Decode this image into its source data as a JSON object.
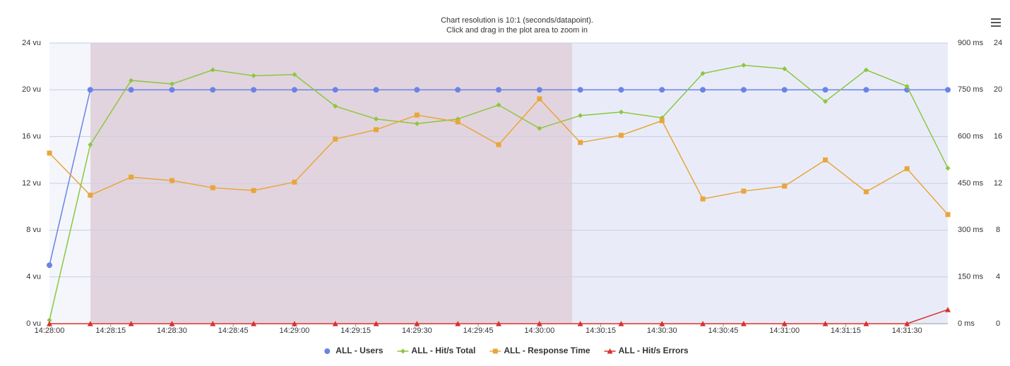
{
  "chart_data": {
    "type": "line",
    "title": "Chart resolution is 10:1 (seconds/datapoint).",
    "subtitle": "Click and drag in the plot area to zoom in",
    "x": [
      "14:28:00",
      "14:28:10",
      "14:28:20",
      "14:28:30",
      "14:28:40",
      "14:28:50",
      "14:29:00",
      "14:29:10",
      "14:29:20",
      "14:29:30",
      "14:29:40",
      "14:29:50",
      "14:30:00",
      "14:30:10",
      "14:30:20",
      "14:30:30",
      "14:30:40",
      "14:30:50",
      "14:31:00",
      "14:31:10",
      "14:31:20",
      "14:31:30",
      "14:31:40"
    ],
    "xlim": [
      "14:28:00",
      "14:31:40"
    ],
    "xticks": [
      "14:28:00",
      "14:28:15",
      "14:28:30",
      "14:28:45",
      "14:29:00",
      "14:29:15",
      "14:29:30",
      "14:29:45",
      "14:30:00",
      "14:30:15",
      "14:30:30",
      "14:30:45",
      "14:31:00",
      "14:31:15",
      "14:31:30"
    ],
    "ylim": [
      0,
      24
    ],
    "yticks": [
      {
        "value": 0,
        "label": "0 vu"
      },
      {
        "value": 4,
        "label": "4 vu"
      },
      {
        "value": 8,
        "label": "8 vu"
      },
      {
        "value": 12,
        "label": "12 vu"
      },
      {
        "value": 16,
        "label": "16 vu"
      },
      {
        "value": 20,
        "label": "20 vu"
      },
      {
        "value": 24,
        "label": "24 vu"
      }
    ],
    "y2lim": [
      0,
      900
    ],
    "y2ticks": [
      {
        "value": 0,
        "label": "0 ms"
      },
      {
        "value": 150,
        "label": "150 ms"
      },
      {
        "value": 300,
        "label": "300 ms"
      },
      {
        "value": 450,
        "label": "450 ms"
      },
      {
        "value": 600,
        "label": "600 ms"
      },
      {
        "value": 750,
        "label": "750 ms"
      },
      {
        "value": 900,
        "label": "900 ms"
      }
    ],
    "y3lim": [
      0,
      24
    ],
    "y3ticks": [
      0,
      4,
      8,
      12,
      16,
      20,
      24
    ],
    "grid": true,
    "legend": "bottom",
    "series": [
      {
        "name": "ALL - Users",
        "color": "#6a83e6",
        "marker": "circle",
        "axis": "y",
        "values": [
          5,
          20,
          20,
          20,
          20,
          20,
          20,
          20,
          20,
          20,
          20,
          20,
          20,
          20,
          20,
          20,
          20,
          20,
          20,
          20,
          20,
          20,
          20
        ]
      },
      {
        "name": "ALL - Hit/s Total",
        "color": "#8cc63f",
        "marker": "diamond",
        "axis": "y3",
        "values": [
          0.3,
          15.3,
          20.8,
          20.5,
          21.7,
          21.2,
          21.3,
          18.6,
          17.5,
          17.1,
          17.5,
          18.7,
          16.7,
          17.8,
          18.1,
          17.6,
          21.4,
          22.1,
          21.8,
          19.0,
          21.7,
          20.3,
          13.3
        ]
      },
      {
        "name": "ALL - Response Time",
        "color": "#e8a63a",
        "marker": "square",
        "axis": "y2",
        "values": [
          547,
          412,
          470,
          459,
          436,
          427,
          454,
          592,
          622,
          669,
          647,
          574,
          721,
          581,
          604,
          651,
          400,
          425,
          441,
          525,
          423,
          497,
          350
        ]
      },
      {
        "name": "ALL - Hit/s Errors",
        "color": "#d9312b",
        "marker": "triangle",
        "axis": "y3",
        "values": [
          0,
          0,
          0,
          0,
          0,
          0,
          0,
          0,
          0,
          0,
          0,
          0,
          0,
          0,
          0,
          0,
          0,
          0,
          0,
          0,
          0,
          0,
          1.2
        ]
      }
    ]
  }
}
